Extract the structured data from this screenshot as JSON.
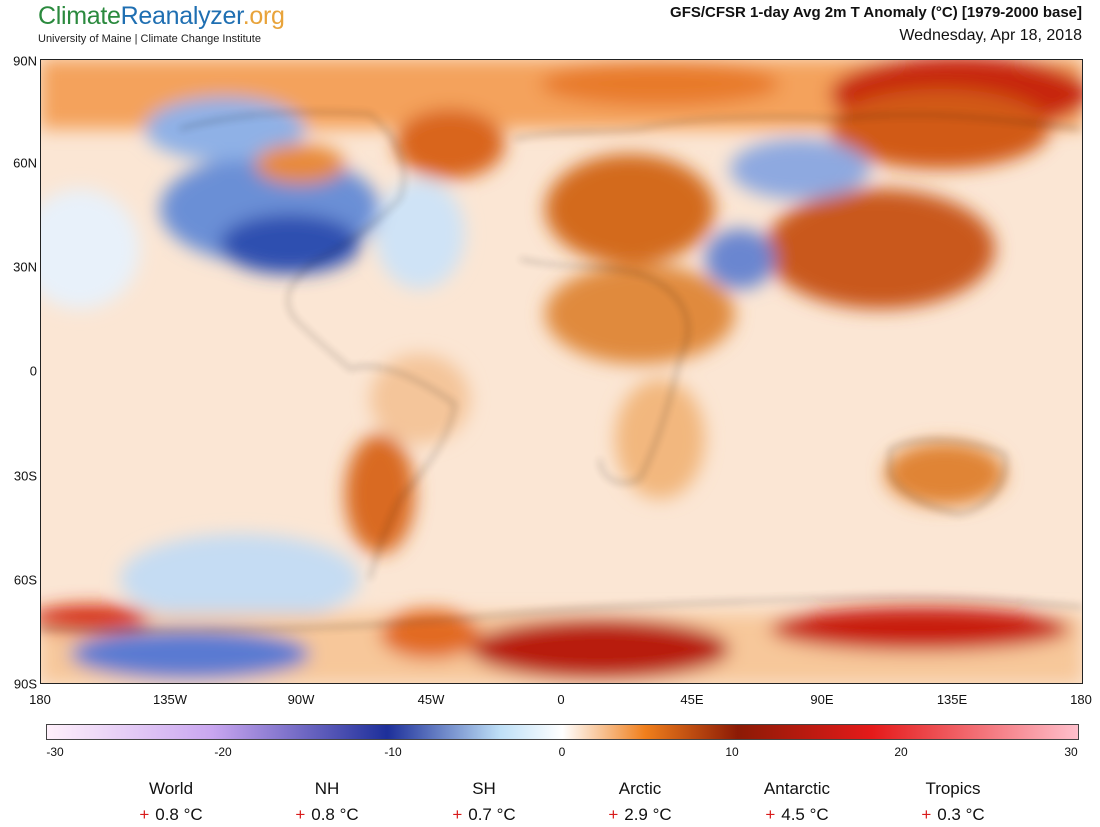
{
  "header": {
    "logo_part1": "Climate",
    "logo_part2": "Reanalyzer",
    "logo_part3": ".org",
    "affiliation": "University of Maine | Climate Change Institute",
    "title": "GFS/CFSR 1-day Avg 2m T Anomaly (°C) [1979-2000 base]",
    "date": "Wednesday, Apr 18, 2018"
  },
  "map": {
    "lat_labels": [
      "90N",
      "60N",
      "30N",
      "0",
      "30S",
      "60S",
      "90S"
    ],
    "lon_labels": [
      "180",
      "135W",
      "90W",
      "45W",
      "0",
      "45E",
      "90E",
      "135E",
      "180"
    ]
  },
  "colorbar": {
    "ticks": [
      "-30",
      "-20",
      "-10",
      "0",
      "10",
      "20",
      "30"
    ],
    "colors": {
      "min": "#fff0fb",
      "purple": "#c9a6f0",
      "deep_blue": "#1d2f9a",
      "light_blue": "#bfe0f7",
      "white": "#ffffff",
      "orange": "#f07f1c",
      "dark_red": "#8c1a05",
      "red": "#e51a1a",
      "max": "#ffc0cc"
    }
  },
  "regions": [
    {
      "name": "World",
      "sign": "+",
      "value": "0.8 °C"
    },
    {
      "name": "NH",
      "sign": "+",
      "value": "0.8 °C"
    },
    {
      "name": "SH",
      "sign": "+",
      "value": "0.7 °C"
    },
    {
      "name": "Arctic",
      "sign": "+",
      "value": "2.9 °C"
    },
    {
      "name": "Antarctic",
      "sign": "+",
      "value": "4.5 °C"
    },
    {
      "name": "Tropics",
      "sign": "+",
      "value": "0.3 °C"
    }
  ]
}
